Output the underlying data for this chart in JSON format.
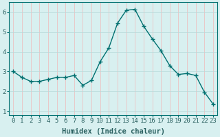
{
  "x": [
    0,
    1,
    2,
    3,
    4,
    5,
    6,
    7,
    8,
    9,
    10,
    11,
    12,
    13,
    14,
    15,
    16,
    17,
    18,
    19,
    20,
    21,
    22,
    23
  ],
  "y": [
    3.0,
    2.7,
    2.5,
    2.5,
    2.6,
    2.7,
    2.7,
    2.8,
    2.3,
    2.55,
    3.5,
    4.2,
    5.45,
    6.1,
    6.15,
    5.3,
    4.65,
    4.05,
    3.3,
    2.85,
    2.9,
    2.8,
    1.95,
    1.35
  ],
  "line_color": "#007070",
  "marker_color": "#007070",
  "bg_color": "#d8f0f0",
  "grid_color": "#b8dada",
  "grid_minor_color": "#f0b8b8",
  "xlabel": "Humidex (Indice chaleur)",
  "ylim": [
    0.8,
    6.5
  ],
  "xlim": [
    -0.5,
    23.5
  ],
  "yticks": [
    1,
    2,
    3,
    4,
    5,
    6
  ],
  "xticks": [
    0,
    1,
    2,
    3,
    4,
    5,
    6,
    7,
    8,
    9,
    10,
    11,
    12,
    13,
    14,
    15,
    16,
    17,
    18,
    19,
    20,
    21,
    22,
    23
  ],
  "font_color": "#2a6060",
  "xlabel_fontsize": 7.5,
  "tick_fontsize": 6.5
}
